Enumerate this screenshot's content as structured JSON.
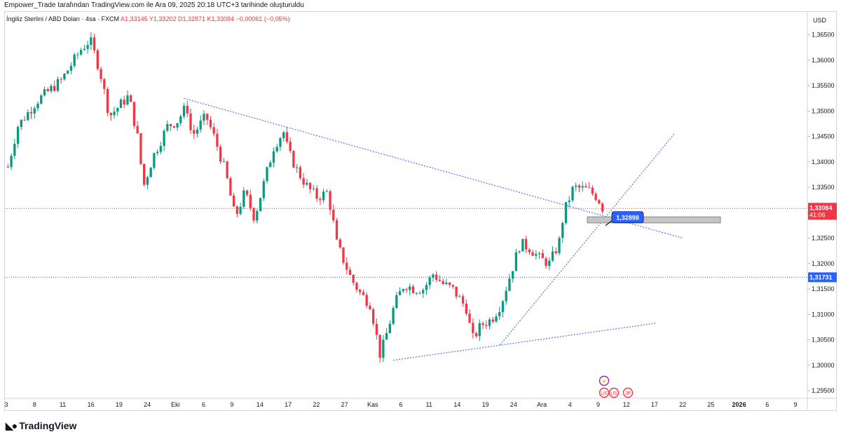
{
  "header": {
    "attribution": "Empower_Trade tarafından TradingView.com ile Ara 09, 2025 20:18 UTC+3 tarihinde oluşturuldu"
  },
  "legend": {
    "symbol": "İngiliz Sterlini / ABD Doları · 4sa · FXCM",
    "ohlc": "A1,33145  Y1,33202  D1,32871  K1,33084  −0,00061 (−0,05%)"
  },
  "footer": {
    "brand": "TradingView"
  },
  "colors": {
    "up": "#089981",
    "down": "#f23645",
    "trend": "#2962ff",
    "highlight": "#2962ff"
  },
  "chart_data": {
    "type": "candlestick",
    "currency": "USD",
    "ylim": [
      1.2935,
      1.3695
    ],
    "y_ticks": [
      "1,36500",
      "1,36000",
      "1,35500",
      "1,35000",
      "1,34500",
      "1,34000",
      "1,33500",
      "1,33000",
      "1,32500",
      "1,32000",
      "1,31500",
      "1,31000",
      "1,30500",
      "1,30000",
      "1,29500"
    ],
    "x_ticks": [
      "3",
      "8",
      "11",
      "16",
      "19",
      "24",
      "Eki",
      "6",
      "9",
      "14",
      "17",
      "22",
      "27",
      "Kas",
      "6",
      "11",
      "14",
      "19",
      "24",
      "Ara",
      "4",
      "9",
      "12",
      "17",
      "22",
      "25",
      "2026",
      "6",
      "9"
    ],
    "price_path": [
      {
        "t": 0,
        "p": 1.339
      },
      {
        "t": 2,
        "p": 1.347
      },
      {
        "t": 6,
        "p": 1.352
      },
      {
        "t": 11,
        "p": 1.356
      },
      {
        "t": 15,
        "p": 1.362
      },
      {
        "t": 17,
        "p": 1.364
      },
      {
        "t": 19,
        "p": 1.358
      },
      {
        "t": 21,
        "p": 1.349
      },
      {
        "t": 23,
        "p": 1.351
      },
      {
        "t": 25,
        "p": 1.353
      },
      {
        "t": 27,
        "p": 1.344
      },
      {
        "t": 28,
        "p": 1.335
      },
      {
        "t": 30,
        "p": 1.341
      },
      {
        "t": 33,
        "p": 1.347
      },
      {
        "t": 35,
        "p": 1.348
      },
      {
        "t": 37,
        "p": 1.351
      },
      {
        "t": 38,
        "p": 1.345
      },
      {
        "t": 41,
        "p": 1.349
      },
      {
        "t": 43,
        "p": 1.344
      },
      {
        "t": 45,
        "p": 1.338
      },
      {
        "t": 47,
        "p": 1.329
      },
      {
        "t": 49,
        "p": 1.334
      },
      {
        "t": 51,
        "p": 1.329
      },
      {
        "t": 53,
        "p": 1.336
      },
      {
        "t": 55,
        "p": 1.343
      },
      {
        "t": 57,
        "p": 1.346
      },
      {
        "t": 58,
        "p": 1.342
      },
      {
        "t": 60,
        "p": 1.338
      },
      {
        "t": 62,
        "p": 1.335
      },
      {
        "t": 64,
        "p": 1.333
      },
      {
        "t": 66,
        "p": 1.334
      },
      {
        "t": 67,
        "p": 1.33
      },
      {
        "t": 68,
        "p": 1.324
      },
      {
        "t": 71,
        "p": 1.317
      },
      {
        "t": 73,
        "p": 1.314
      },
      {
        "t": 75,
        "p": 1.312
      },
      {
        "t": 76,
        "p": 1.307
      },
      {
        "t": 77,
        "p": 1.302
      },
      {
        "t": 78,
        "p": 1.305
      },
      {
        "t": 80,
        "p": 1.312
      },
      {
        "t": 82,
        "p": 1.316
      },
      {
        "t": 84,
        "p": 1.315
      },
      {
        "t": 86,
        "p": 1.315
      },
      {
        "t": 88,
        "p": 1.318
      },
      {
        "t": 90,
        "p": 1.316
      },
      {
        "t": 92,
        "p": 1.315
      },
      {
        "t": 95,
        "p": 1.311
      },
      {
        "t": 96,
        "p": 1.305
      },
      {
        "t": 98,
        "p": 1.308
      },
      {
        "t": 100,
        "p": 1.309
      },
      {
        "t": 102,
        "p": 1.312
      },
      {
        "t": 104,
        "p": 1.318
      },
      {
        "t": 106,
        "p": 1.324
      },
      {
        "t": 108,
        "p": 1.323
      },
      {
        "t": 110,
        "p": 1.321
      },
      {
        "t": 112,
        "p": 1.32
      },
      {
        "t": 114,
        "p": 1.324
      },
      {
        "t": 115,
        "p": 1.33
      },
      {
        "t": 117,
        "p": 1.335
      },
      {
        "t": 120,
        "p": 1.3345
      },
      {
        "t": 122,
        "p": 1.333
      },
      {
        "t": 123,
        "p": 1.331
      }
    ],
    "last_price": "1,33084",
    "countdown": "41:06",
    "horizontal_levels": [
      {
        "value": "1,31731"
      }
    ],
    "callout": {
      "value": "1,32898"
    },
    "zone": {
      "low": 1.328,
      "high": 1.3292
    },
    "trendlines": [
      {
        "name": "descending resistance",
        "from": [
          1.3525
        ],
        "to": [
          1.325
        ]
      },
      {
        "name": "rising support",
        "from": [
          1.304
        ],
        "to": [
          1.3455
        ]
      },
      {
        "name": "lower support",
        "from": [
          1.301
        ],
        "to": [
          1.3083
        ]
      }
    ],
    "events": [
      "⚡",
      "US",
      "US",
      "JP"
    ]
  }
}
